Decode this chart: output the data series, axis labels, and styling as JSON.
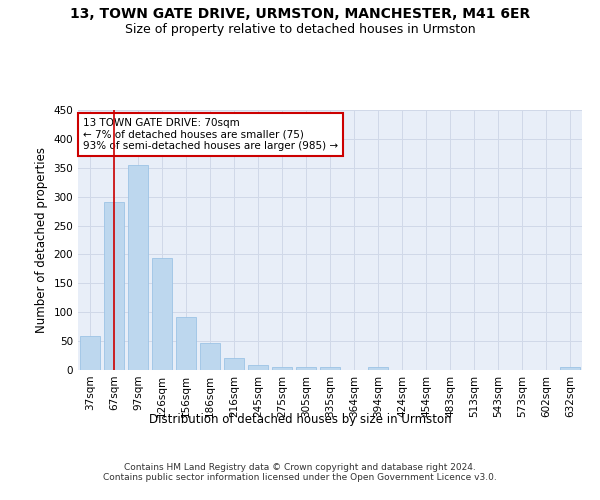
{
  "title1": "13, TOWN GATE DRIVE, URMSTON, MANCHESTER, M41 6ER",
  "title2": "Size of property relative to detached houses in Urmston",
  "xlabel": "Distribution of detached houses by size in Urmston",
  "ylabel": "Number of detached properties",
  "categories": [
    "37sqm",
    "67sqm",
    "97sqm",
    "126sqm",
    "156sqm",
    "186sqm",
    "216sqm",
    "245sqm",
    "275sqm",
    "305sqm",
    "335sqm",
    "364sqm",
    "394sqm",
    "424sqm",
    "454sqm",
    "483sqm",
    "513sqm",
    "543sqm",
    "573sqm",
    "602sqm",
    "632sqm"
  ],
  "values": [
    59,
    290,
    355,
    193,
    92,
    47,
    20,
    9,
    5,
    5,
    5,
    0,
    5,
    0,
    0,
    0,
    0,
    0,
    0,
    0,
    5
  ],
  "bar_color": "#bdd7ee",
  "bar_edge_color": "#9dc3e6",
  "vline_x": 1,
  "vline_color": "#cc0000",
  "annotation_text": "13 TOWN GATE DRIVE: 70sqm\n← 7% of detached houses are smaller (75)\n93% of semi-detached houses are larger (985) →",
  "annotation_box_color": "#ffffff",
  "annotation_box_edge_color": "#cc0000",
  "grid_color": "#d0d8e8",
  "background_color": "#e8eef8",
  "footer_text": "Contains HM Land Registry data © Crown copyright and database right 2024.\nContains public sector information licensed under the Open Government Licence v3.0.",
  "ylim": [
    0,
    450
  ],
  "yticks": [
    0,
    50,
    100,
    150,
    200,
    250,
    300,
    350,
    400,
    450
  ],
  "title1_fontsize": 10,
  "title2_fontsize": 9,
  "tick_fontsize": 7.5,
  "ylabel_fontsize": 8.5,
  "xlabel_fontsize": 8.5,
  "annot_fontsize": 7.5,
  "footer_fontsize": 6.5
}
